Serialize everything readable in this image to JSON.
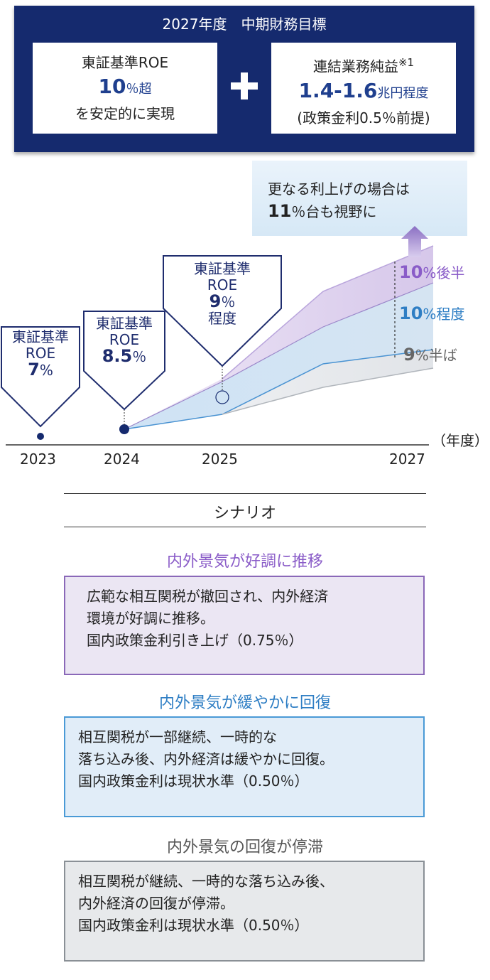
{
  "header": {
    "title": "2027年度　中期財務目標",
    "left": {
      "line1": "東証基準ROE",
      "value": "10",
      "unit": "％超",
      "line3": "を安定的に実現"
    },
    "right": {
      "line1": "連結業務純益",
      "note": "※1",
      "value": "1.4-1.6",
      "unit": "兆円程度",
      "line3": "(政策金利0.5％前提)"
    }
  },
  "callout": {
    "line1": "更なる利上げの場合は",
    "value": "11",
    "rest": "％台も視野に"
  },
  "labels": {
    "l2023": {
      "line1": "東証基準",
      "line2": "ROE",
      "value": "7",
      "unit": "%"
    },
    "l2024": {
      "line1": "東証基準",
      "line2": "ROE",
      "value": "8.5",
      "unit": "％"
    },
    "l2025": {
      "line1": "東証基準",
      "line2": "ROE",
      "value": "9",
      "unit": "％",
      "line4": "程度"
    }
  },
  "scenario_labels": {
    "upper": {
      "value": "10",
      "text": "%後半"
    },
    "mid": {
      "value": "10",
      "text": "%程度"
    },
    "low": {
      "value": "9",
      "text": "%半ば"
    }
  },
  "axis_unit": "（年度）",
  "chart_data": {
    "type": "area",
    "x": [
      "2023",
      "2024",
      "2025",
      "2027"
    ],
    "series": [
      {
        "name": "内外景気が好調に推移",
        "color": "#9b79c8"
      },
      {
        "name": "内外景気が緩やかに回復",
        "color": "#3c8fd0"
      },
      {
        "name": "内外景気の回復が停滞",
        "color": "#a9aeb4"
      }
    ]
  },
  "scenarios": {
    "heading": "シナリオ",
    "items": [
      {
        "title": "内外景気が好調に推移",
        "lines": [
          "広範な相互関税が撤回され、内外経済",
          "環境が好調に推移。",
          "国内政策金利引き上げ（0.75％）"
        ]
      },
      {
        "title": "内外景気が緩やかに回復",
        "lines": [
          "相互関税が一部継続、一時的な",
          "落ち込み後、内外経済は緩やかに回復。",
          "国内政策金利は現状水準（0.50％）"
        ]
      },
      {
        "title": "内外景気の回復が停滞",
        "lines": [
          "相互関税が継続、一時的な落ち込み後、",
          "内外経済の回復が停滞。",
          "国内政策金利は現状水準（0.50％）"
        ]
      }
    ]
  },
  "colors": {
    "navy": "#152a6e",
    "purple": "#8a5cc8",
    "blue": "#2e7ec4",
    "gray": "#666666"
  }
}
